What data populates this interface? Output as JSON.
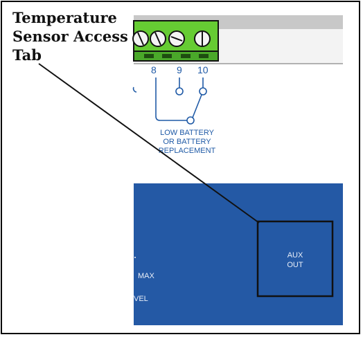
{
  "callout": {
    "title": "Temperature\nSensor Access\nTab"
  },
  "terminals": {
    "labels": [
      "8",
      "9",
      "10"
    ]
  },
  "relay": {
    "label_lines": [
      "LOW BATTERY",
      "OR BATTERY",
      "REPLACEMENT"
    ]
  },
  "aux_box": {
    "label_lines": [
      "AUX",
      "OUT"
    ]
  },
  "panel": {
    "partial_labels": [
      "MAX",
      "VEL"
    ]
  },
  "colors": {
    "blue_panel": "#2459a5",
    "terminal_green": "#66cc33",
    "diagram_blue": "#1f5aa6"
  }
}
